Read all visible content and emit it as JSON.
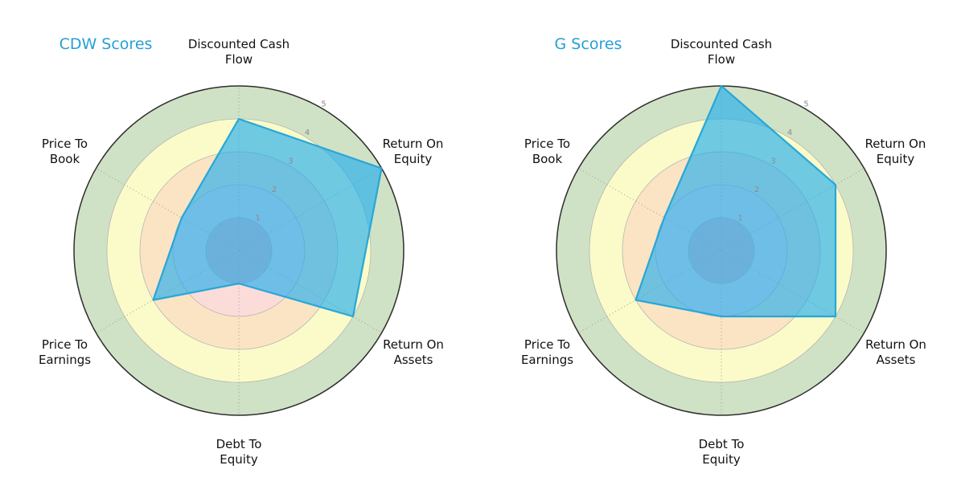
{
  "figure": {
    "background": "#ffffff"
  },
  "chart_data": [
    {
      "type": "radar",
      "title": "CDW Scores",
      "categories": [
        "Discounted Cash Flow",
        "Return On Equity",
        "Return On Assets",
        "Debt To Equity",
        "Price To Earnings",
        "Price To Book"
      ],
      "category_lines": [
        [
          "Discounted Cash",
          "Flow"
        ],
        [
          "Return On",
          "Equity"
        ],
        [
          "Return On",
          "Assets"
        ],
        [
          "Debt To",
          "Equity"
        ],
        [
          "Price To",
          "Earnings"
        ],
        [
          "Price To",
          "Book"
        ]
      ],
      "values": [
        4,
        5,
        4,
        1,
        3,
        2
      ],
      "r_ticks": [
        1,
        2,
        3,
        4,
        5
      ],
      "r_range": [
        0,
        5
      ],
      "grid": "on",
      "legend": "none"
    },
    {
      "type": "radar",
      "title": "G Scores",
      "categories": [
        "Discounted Cash Flow",
        "Return On Equity",
        "Return On Assets",
        "Debt To Equity",
        "Price To Earnings",
        "Price To Book"
      ],
      "category_lines": [
        [
          "Discounted Cash",
          "Flow"
        ],
        [
          "Return On",
          "Equity"
        ],
        [
          "Return On",
          "Assets"
        ],
        [
          "Debt To",
          "Equity"
        ],
        [
          "Price To",
          "Earnings"
        ],
        [
          "Price To",
          "Book"
        ]
      ],
      "values": [
        5,
        4,
        4,
        2,
        3,
        2
      ],
      "r_ticks": [
        1,
        2,
        3,
        4,
        5
      ],
      "r_range": [
        0,
        5
      ],
      "grid": "on",
      "legend": "none"
    }
  ],
  "style": {
    "title_color": "#279fd4",
    "label_color": "#111111",
    "tick_color": "#8c8c8c",
    "grid_color": "#b5b5b5",
    "spoke_color": "#9b9b9b",
    "outer_ring_stroke": "#2e2e2e",
    "series_fill": "rgba(35,174,238,0.65)",
    "series_stroke": "#27a7d8",
    "rings": [
      {
        "r": 5,
        "color": "#cfe2c5"
      },
      {
        "r": 4,
        "color": "#fafbc8"
      },
      {
        "r": 3,
        "color": "#fbe4c4"
      },
      {
        "r": 2,
        "color": "#fbdcd9"
      },
      {
        "r": 1,
        "color": "#f4b8ba"
      }
    ]
  }
}
